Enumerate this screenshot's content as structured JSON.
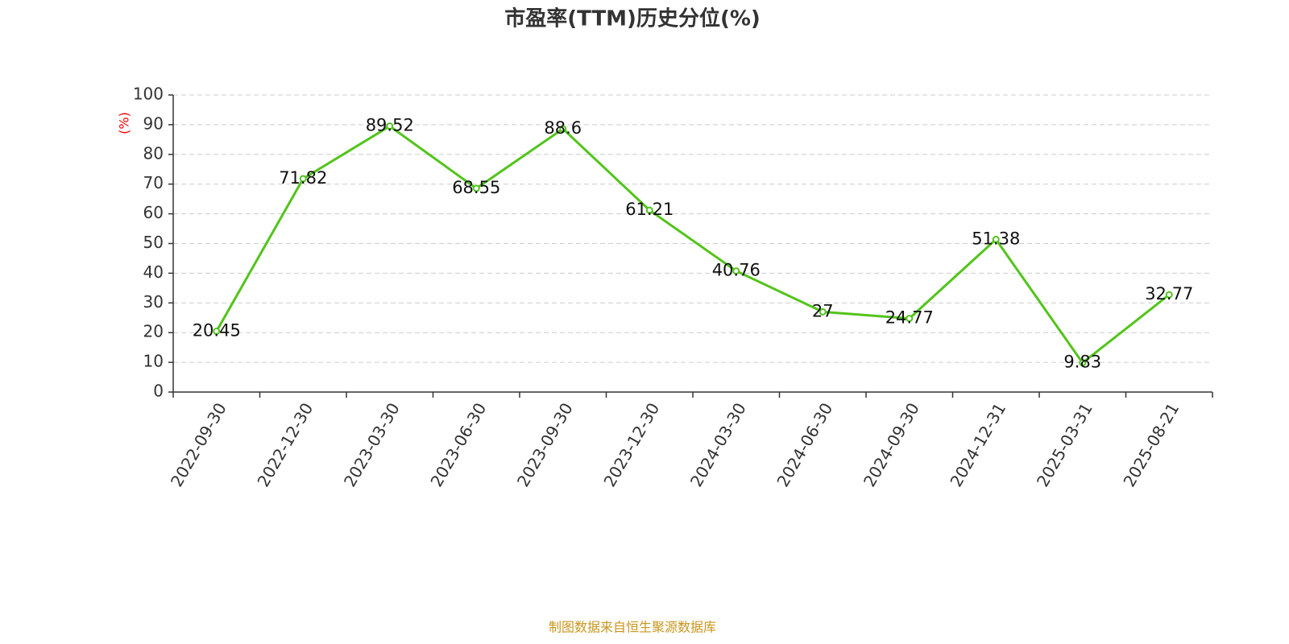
{
  "chart_data": {
    "type": "line",
    "title": "市盈率(TTM)历史分位(%)",
    "y_label": "(%)",
    "categories": [
      "2022-09-30",
      "2022-12-30",
      "2023-03-30",
      "2023-06-30",
      "2023-09-30",
      "2023-12-30",
      "2024-03-30",
      "2024-06-30",
      "2024-09-30",
      "2024-12-31",
      "2025-03-31",
      "2025-08-21"
    ],
    "values": [
      20.45,
      71.82,
      89.52,
      68.55,
      88.6,
      61.21,
      40.76,
      27,
      24.77,
      51.38,
      9.83,
      32.77
    ],
    "color": "#52c41a",
    "ylim": [
      0,
      100
    ],
    "yticks": [
      0,
      10,
      20,
      30,
      40,
      50,
      60,
      70,
      80,
      90,
      100
    ],
    "grid": true,
    "source": "制图数据来自恒生聚源数据库"
  }
}
